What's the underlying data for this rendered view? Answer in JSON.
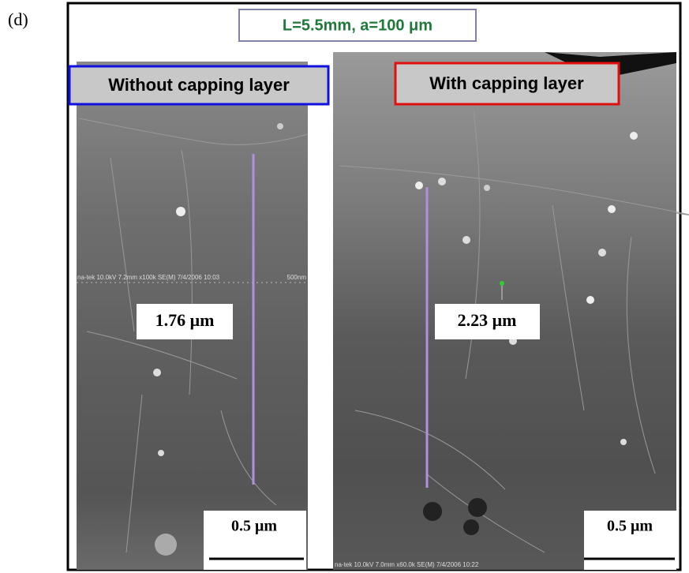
{
  "panel_label": "(d)",
  "title": "L=5.5mm, a=100 μm",
  "left": {
    "label": "Without capping layer",
    "measurement": "1.76 μm",
    "scale_bar": "0.5 μm",
    "sem_info": "na-tek 10.0kV 7.2mm x100k SE(M) 7/4/2006 10:03",
    "sem_scale": "500nm"
  },
  "right": {
    "label": "With capping layer",
    "measurement": "2.23 μm",
    "scale_bar": "0.5 μm",
    "sem_info": "na-tek 10.0kV 7.0mm x60.0k SE(M) 7/4/2006 10:22"
  }
}
